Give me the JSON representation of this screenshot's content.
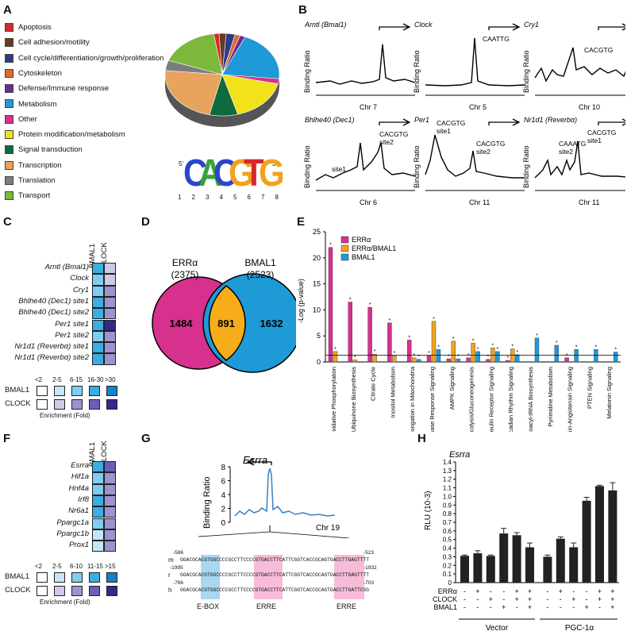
{
  "panels": {
    "A": "A",
    "B": "B",
    "C": "C",
    "D": "D",
    "E": "E",
    "F": "F",
    "G": "G",
    "H": "H"
  },
  "panelA": {
    "categories": [
      {
        "name": "Apoptosis",
        "color": "#d42a2f"
      },
      {
        "name": "Cell adhesion/motility",
        "color": "#6a3b1e"
      },
      {
        "name": "Cell cycle/differentiation/growth/proliferation",
        "color": "#2c3a8c"
      },
      {
        "name": "Cytoskeleton",
        "color": "#e06a2c"
      },
      {
        "name": "Defense/Immune response",
        "color": "#6a2d8c"
      },
      {
        "name": "Metabolism",
        "color": "#1e9ad6"
      },
      {
        "name": "Other",
        "color": "#d6318c"
      },
      {
        "name": "Protein modification/metabolism",
        "color": "#f1e21b"
      },
      {
        "name": "Signal transduction",
        "color": "#0f6a3d"
      },
      {
        "name": "Transcription",
        "color": "#e8a35c"
      },
      {
        "name": "Translation",
        "color": "#7d7d7d"
      },
      {
        "name": "Transport",
        "color": "#7cb83a"
      }
    ],
    "pie_fractions": [
      0.015,
      0.02,
      0.025,
      0.015,
      0.015,
      0.2,
      0.02,
      0.17,
      0.08,
      0.23,
      0.04,
      0.17
    ],
    "motif": {
      "letters": [
        "C",
        "A",
        "C",
        "G",
        "T",
        "G"
      ],
      "colors": [
        "#2b45c8",
        "#37a33a",
        "#2b45c8",
        "#f2a21d",
        "#d8262c",
        "#f2a21d"
      ],
      "positions": [
        "1",
        "2",
        "3",
        "4",
        "5",
        "6",
        "7",
        "8"
      ],
      "five": "5'",
      "three": "3'"
    }
  },
  "panelB": {
    "ylabel": "Binding Ratio",
    "plots": [
      {
        "gene": "Arntl (Bmal1)",
        "chr": "Chr 7",
        "labels": []
      },
      {
        "gene": "Clock",
        "chr": "Chr 5",
        "labels": [
          "CAATTG"
        ]
      },
      {
        "gene": "Cry1",
        "chr": "Chr 10",
        "labels": [
          "CACGTG"
        ]
      },
      {
        "gene": "Bhlhe40 (Dec1)",
        "chr": "Chr 6",
        "labels": [
          "site1",
          "CACGTG",
          "site2"
        ]
      },
      {
        "gene": "Per1",
        "chr": "Chr 11",
        "labels": [
          "CACGTG",
          "site1",
          "CACGTG",
          "site2"
        ]
      },
      {
        "gene": "Nr1d1 (Reverbα)",
        "chr": "Chr 11",
        "labels": [
          "CAAATG",
          "site2",
          "CACGTG",
          "site1"
        ]
      }
    ]
  },
  "panelC": {
    "cols": [
      "BMAL1",
      "CLOCK"
    ],
    "rows": [
      "Arntl (Bmal1)",
      "Clock",
      "Cry1",
      "Bhlhe40 (Dec1) site1",
      "Bhlhe40 (Dec1) site2",
      "Per1 site1",
      "Per1 site2",
      "Nr1d1 (Reverbα) site1",
      "Nr1d1 (Reverbα) site2"
    ],
    "bmal1": [
      3,
      2,
      2,
      3,
      3,
      3,
      2,
      3,
      3
    ],
    "clock": [
      1,
      1,
      2,
      2,
      2,
      4,
      2,
      2,
      2
    ],
    "scale_labels": [
      "<2",
      "2-5",
      "6-15",
      "16-30",
      ">30"
    ],
    "legend_rows": [
      "BMAL1",
      "CLOCK"
    ],
    "xlabel": "Enrichment (Fold)"
  },
  "panelD": {
    "left_name": "ERRα",
    "left_total": "(2375)",
    "right_name": "BMAL1",
    "right_total": "(2523)",
    "left_only": "1484",
    "overlap": "891",
    "right_only": "1632"
  },
  "panelE": {
    "ylabel": "-Log (p-value)",
    "ylim": [
      0,
      25
    ],
    "yticks": [
      "0",
      "5",
      "10",
      "15",
      "20",
      "25"
    ],
    "legend": [
      "ERRα",
      "ERRα/BMAL1",
      "BMAL1"
    ],
    "chart_data": {
      "type": "bar",
      "categories": [
        "Oxidative Phosphorylation",
        "Ubiquinone Biosynthesis",
        "Citrate Cycle",
        "Inositol Metabolism",
        "Fatty Acid Elongation in Mitochondria",
        "Acute Phase Response Signaling",
        "AMPK Signaling",
        "Glycolysis/Gluconeogenesis",
        "Insulin Receptor Signaling",
        "Circadian Rhythm Signaling",
        "Aminoacyl-tRNA Biosynthesis",
        "Pyrimidine Metabolism",
        "Renin-Angiotensin Signaling",
        "PTEN Signaling",
        "Melatonin Signaling"
      ],
      "series": [
        {
          "name": "ERRα",
          "color": "#d6318c",
          "values": [
            22,
            11.5,
            10.5,
            7.5,
            4.2,
            1.2,
            0.6,
            0.8,
            0.5,
            0.3,
            0,
            0,
            0.8,
            0,
            0
          ]
        },
        {
          "name": "ERRα/BMAL1",
          "color": "#f2a21d",
          "values": [
            2,
            0.4,
            1.5,
            1.2,
            0.8,
            7.8,
            4,
            3.6,
            2.7,
            2.5,
            0,
            0,
            0,
            0,
            0
          ]
        },
        {
          "name": "BMAL1",
          "color": "#1e9ad6",
          "values": [
            0,
            0,
            0,
            0,
            0.5,
            2.4,
            0.6,
            2,
            2,
            1.4,
            4.6,
            3.2,
            2.4,
            2.4,
            1.9
          ]
        }
      ]
    }
  },
  "panelF": {
    "cols": [
      "BMAL1",
      "CLOCK"
    ],
    "rows": [
      "Esrra",
      "Hif1a",
      "Hnf4a",
      "Irf8",
      "Nr6a1",
      "Ppargc1a",
      "Ppargc1b",
      "Prox1"
    ],
    "bmal1": [
      3,
      2,
      2,
      3,
      3,
      2,
      1,
      1
    ],
    "clock": [
      3,
      2,
      2,
      2,
      2,
      2,
      2,
      2
    ],
    "scale_labels": [
      "<2",
      "2-5",
      "6-10",
      "11-15",
      ">15"
    ],
    "legend_rows": [
      "BMAL1",
      "CLOCK"
    ],
    "xlabel": "Enrichment (Fold)"
  },
  "panelG": {
    "gene": "Esrra",
    "ylabel": "Binding Ratio",
    "yticks": [
      "0",
      "2",
      "4",
      "6",
      "8"
    ],
    "chr": "Chr 19",
    "seqs": [
      {
        "sp": "m",
        "start": "-586",
        "end": "-523",
        "text": "GGACGCACGTGGCCCCGCCTTCCCCGTGACCTTCATTCGGTCACCGCAGTGACCTTGAGTTTT"
      },
      {
        "sp": "r",
        "start": "-1995",
        "end": "-1932",
        "text": "GGACGCACGTGGCCCCGCCTTCCCCGTGACCTTCATTCGGTCACCGCAGTGACCTTGAGTTTT"
      },
      {
        "sp": "h",
        "start": "-766",
        "end": "-703",
        "text": "GGACGCACGTGGCCCCGCCTTCCCCGTGACCTTCATTCGGTCACCGCAGTGACCTTGATTCGG"
      }
    ],
    "boxes": [
      "E-BOX",
      "ERRE",
      "ERRE"
    ]
  },
  "panelH": {
    "gene": "Esrra",
    "ylabel": "RLU (10-3)",
    "ylim": [
      0,
      1.4
    ],
    "yticks": [
      "0",
      "0.1",
      "0.2",
      "0.3",
      "0.4",
      "0.5",
      "0.6",
      "0.7",
      "0.8",
      "0.9",
      "1.0",
      "1.1",
      "1.2",
      "1.3",
      "1.4"
    ],
    "chart_data": {
      "type": "bar",
      "values": [
        0.31,
        0.34,
        0.31,
        0.57,
        0.55,
        0.41,
        0.3,
        0.51,
        0.41,
        0.95,
        1.12,
        1.07
      ],
      "errors": [
        0.01,
        0.03,
        0.01,
        0.06,
        0.03,
        0.05,
        0.02,
        0.02,
        0.05,
        0.04,
        0.01,
        0.09
      ],
      "rows": [
        {
          "label": "ERRα",
          "signs": [
            "-",
            "+",
            "-",
            "-",
            "+",
            "+",
            "-",
            "+",
            "-",
            "-",
            "+",
            "+"
          ]
        },
        {
          "label": "CLOCK",
          "signs": [
            "-",
            "-",
            "+",
            "-",
            "+",
            "+",
            "-",
            "-",
            "+",
            "-",
            "+",
            "+"
          ]
        },
        {
          "label": "BMAL1",
          "signs": [
            "-",
            "-",
            "-",
            "+",
            "-",
            "+",
            "-",
            "-",
            "-",
            "+",
            "-",
            "+"
          ]
        }
      ],
      "groups": [
        "Vector",
        "PGC-1α"
      ]
    }
  }
}
